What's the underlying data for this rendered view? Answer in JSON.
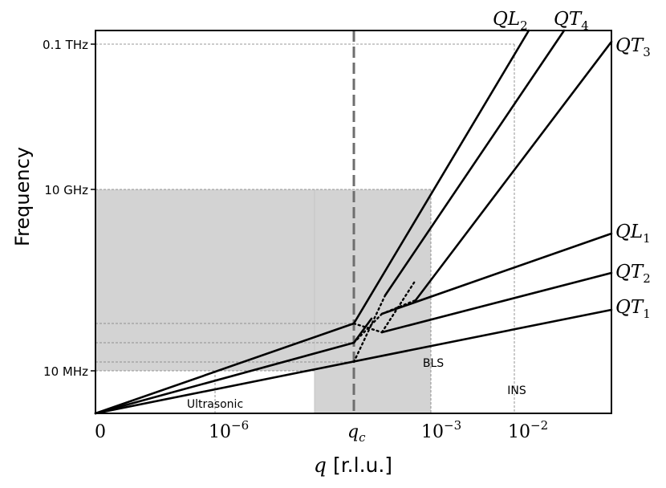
{
  "figure": {
    "ylabel": "Frequency",
    "xlabel_var": "q",
    "xlabel_unit": "[r.l.u.]",
    "yticks": [
      "0.1 THz",
      "10 GHz",
      "10 MHz"
    ],
    "xticks": {
      "zero": "0",
      "e6_base": "10",
      "e6_exp": "−6",
      "qc_base": "q",
      "qc_sub": "c",
      "e3_base": "10",
      "e3_exp": "−3",
      "e2_base": "10",
      "e2_exp": "−2"
    },
    "regions": {
      "ultrasonic": "Ultrasonic",
      "bls": "BLS",
      "ins": "INS"
    },
    "branches": {
      "QL2": {
        "base": "QL",
        "sub": "2"
      },
      "QT4": {
        "base": "QT",
        "sub": "4"
      },
      "QT3": {
        "base": "QT",
        "sub": "3"
      },
      "QL1": {
        "base": "QL",
        "sub": "1"
      },
      "QT2": {
        "base": "QT",
        "sub": "2"
      },
      "QT1": {
        "base": "QT",
        "sub": "1"
      }
    },
    "colors": {
      "region_fill": "#d3d3d3",
      "qc_line": "#6e6e6e",
      "lines": "#000000"
    }
  }
}
